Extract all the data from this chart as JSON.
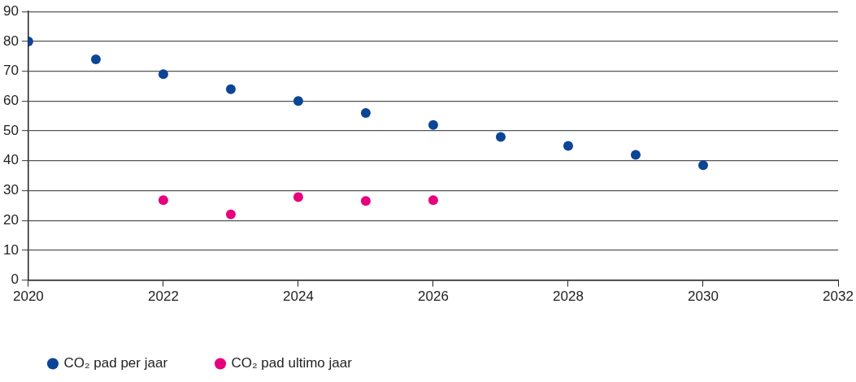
{
  "chart_data": {
    "type": "scatter",
    "marker": "circle",
    "grid": "y",
    "legend": "bottom left",
    "xlim": [
      2020,
      2032
    ],
    "xticks": [
      2020,
      2022,
      2024,
      2026,
      2028,
      2030,
      2032
    ],
    "ylim": [
      0,
      90
    ],
    "yticks": [
      0,
      10,
      20,
      30,
      40,
      50,
      60,
      70,
      80,
      90
    ],
    "series": [
      {
        "name": "CO₂ pad per jaar",
        "color": "#0b4596",
        "x": [
          2020,
          2021,
          2022,
          2023,
          2024,
          2025,
          2026,
          2027,
          2028,
          2029,
          2030
        ],
        "values": [
          80,
          74,
          69,
          64,
          60,
          56,
          52,
          48,
          45,
          42,
          38.5
        ]
      },
      {
        "name": "CO₂ pad ultimo jaar",
        "color": "#e6007e",
        "x": [
          2022,
          2023,
          2024,
          2025,
          2026
        ],
        "values": [
          26.8,
          22,
          27.8,
          26.5,
          26.8
        ]
      }
    ]
  }
}
